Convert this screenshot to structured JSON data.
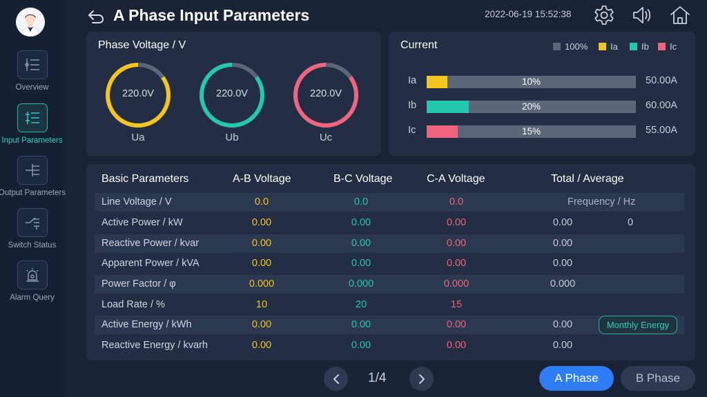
{
  "header": {
    "title": "A Phase Input Parameters",
    "datetime": "2022-06-19 15:52:38"
  },
  "sidebar": {
    "items": [
      {
        "label": "Overview",
        "icon": "list-icon",
        "active": false
      },
      {
        "label": "Input Parameters",
        "icon": "sliders-icon",
        "active": true
      },
      {
        "label": "Output Parameters",
        "icon": "tree-icon",
        "active": false
      },
      {
        "label": "Switch Status",
        "icon": "switch-icon",
        "active": false
      },
      {
        "label": "Alarm Query",
        "icon": "alarm-icon",
        "active": false
      }
    ]
  },
  "colors": {
    "phase_a": "#f2c520",
    "phase_b": "#25c6ab",
    "phase_c": "#ef6480",
    "accent": "#2f7df4",
    "track": "#5b6679"
  },
  "voltage": {
    "title": "Phase Voltage / V",
    "gauges": [
      {
        "label": "Ua",
        "value": "220.0V",
        "fill": 0.85
      },
      {
        "label": "Ub",
        "value": "220.0V",
        "fill": 0.85
      },
      {
        "label": "Uc",
        "value": "220.0V",
        "fill": 0.85
      }
    ]
  },
  "current": {
    "title": "Current",
    "legend": [
      "100%",
      "Ia",
      "Ib",
      "Ic"
    ],
    "bars": [
      {
        "name": "Ia",
        "percent": "10%",
        "fraction": 0.1,
        "amps": "50.00A"
      },
      {
        "name": "Ib",
        "percent": "20%",
        "fraction": 0.2,
        "amps": "60.00A"
      },
      {
        "name": "Ic",
        "percent": "15%",
        "fraction": 0.15,
        "amps": "55.00A"
      }
    ]
  },
  "table": {
    "headers": [
      "Basic Parameters",
      "A-B Voltage",
      "B-C Voltage",
      "C-A Voltage",
      "Total / Average"
    ],
    "frequency_label": "Frequency / Hz",
    "frequency_value": "0",
    "monthly_energy": "Monthly Energy",
    "rows": [
      {
        "label": "Line Voltage / V",
        "ab": "0.0",
        "bc": "0.0",
        "ca": "0.0",
        "total": ""
      },
      {
        "label": "Active Power / kW",
        "ab": "0.00",
        "bc": "0.00",
        "ca": "0.00",
        "total": "0.00"
      },
      {
        "label": "Reactive Power / kvar",
        "ab": "0.00",
        "bc": "0.00",
        "ca": "0.00",
        "total": "0.00"
      },
      {
        "label": "Apparent Power / kVA",
        "ab": "0.00",
        "bc": "0.00",
        "ca": "0.00",
        "total": "0.00"
      },
      {
        "label": "Power Factor / φ",
        "ab": "0.000",
        "bc": "0.000",
        "ca": "0.000",
        "total": "0.000"
      },
      {
        "label": "Load Rate / %",
        "ab": "10",
        "bc": "20",
        "ca": "15",
        "total": ""
      },
      {
        "label": "Active Energy / kWh",
        "ab": "0.00",
        "bc": "0.00",
        "ca": "0.00",
        "total": "0.00"
      },
      {
        "label": "Reactive Energy / kvarh",
        "ab": "0.00",
        "bc": "0.00",
        "ca": "0.00",
        "total": "0.00"
      }
    ]
  },
  "footer": {
    "page": "1/4",
    "phase_a_label": "A Phase",
    "phase_b_label": "B Phase"
  }
}
